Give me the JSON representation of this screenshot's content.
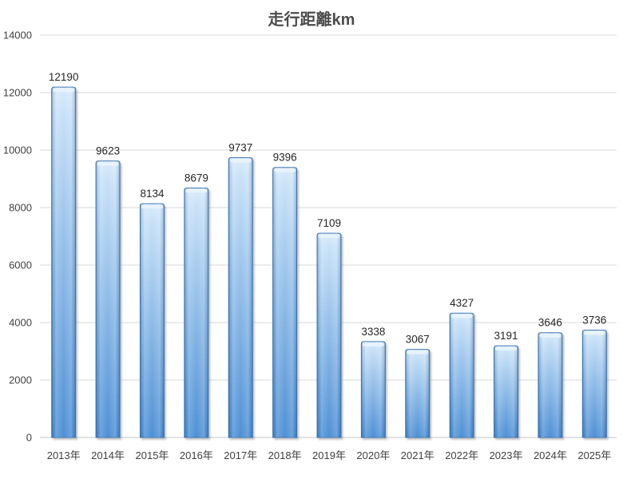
{
  "chart_data": {
    "type": "bar",
    "title": "走行距離km",
    "categories": [
      "2013年",
      "2014年",
      "2015年",
      "2016年",
      "2017年",
      "2018年",
      "2019年",
      "2020年",
      "2021年",
      "2022年",
      "2023年",
      "2024年",
      "2025年"
    ],
    "values": [
      12190,
      9623,
      8134,
      8679,
      9737,
      9396,
      7109,
      3338,
      3067,
      4327,
      3191,
      3646,
      3736
    ],
    "xlabel": "",
    "ylabel": "",
    "ylim": [
      0,
      14000
    ],
    "y_ticks": [
      0,
      2000,
      4000,
      6000,
      8000,
      10000,
      12000,
      14000
    ],
    "grid": "horizontal",
    "legend": "none",
    "data_labels": true,
    "colors": {
      "title": "#4C4C4C",
      "axis_text": "#3F3F3F",
      "value_text": "#262626",
      "gridline": "#D9D9D9",
      "axis_line": "#C6C6C6",
      "bar_top": "#D9EBFA",
      "bar_mid": "#94BFE9",
      "bar_bottom": "#4E90D4",
      "bar_border": "#3E75B2",
      "bar_cap_highlight": "#EAF5FD",
      "shadow": "#8A8A8A"
    }
  }
}
